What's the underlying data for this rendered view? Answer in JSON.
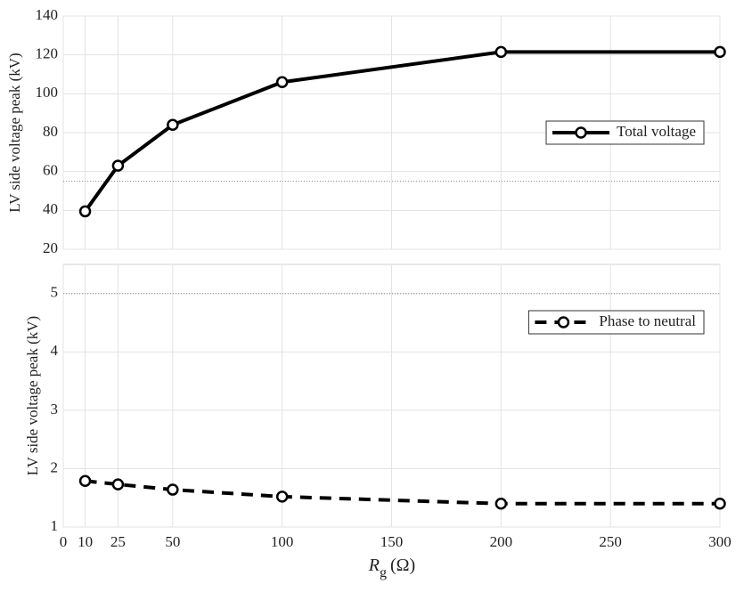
{
  "chart_data": [
    {
      "type": "line",
      "ylabel": "LV side voltage peak (kV)",
      "x": [
        10,
        25,
        50,
        100,
        200,
        300
      ],
      "series": [
        {
          "name": "Total voltage",
          "color": "#000000",
          "linestyle": "solid",
          "values": [
            39.5,
            63,
            84,
            106,
            121.5,
            121.5
          ]
        }
      ],
      "xlim": [
        0,
        300
      ],
      "xticks": [
        0,
        10,
        25,
        50,
        100,
        150,
        200,
        250,
        300
      ],
      "xtick_labels": false,
      "ylim": [
        20,
        140
      ],
      "yticks": [
        20,
        40,
        60,
        80,
        100,
        120,
        140
      ],
      "ref_line": 55,
      "grid": true,
      "legend": "right"
    },
    {
      "type": "line",
      "ylabel": "LV side voltage peak (kV)",
      "xlabel": "R",
      "xlabel_sub": "g",
      "xlabel_unit": "(Ω)",
      "x": [
        10,
        25,
        50,
        100,
        200,
        300
      ],
      "series": [
        {
          "name": "Phase to neutral",
          "color": "#000000",
          "linestyle": "dashed",
          "values": [
            1.79,
            1.73,
            1.64,
            1.52,
            1.4,
            1.4
          ]
        }
      ],
      "xlim": [
        0,
        300
      ],
      "xticks": [
        0,
        10,
        25,
        50,
        100,
        150,
        200,
        250,
        300
      ],
      "xtick_labels": true,
      "ylim": [
        1,
        5.5
      ],
      "yticks": [
        1,
        2,
        3,
        4,
        5
      ],
      "ref_line": 5,
      "grid": true,
      "legend": "upper right"
    }
  ]
}
